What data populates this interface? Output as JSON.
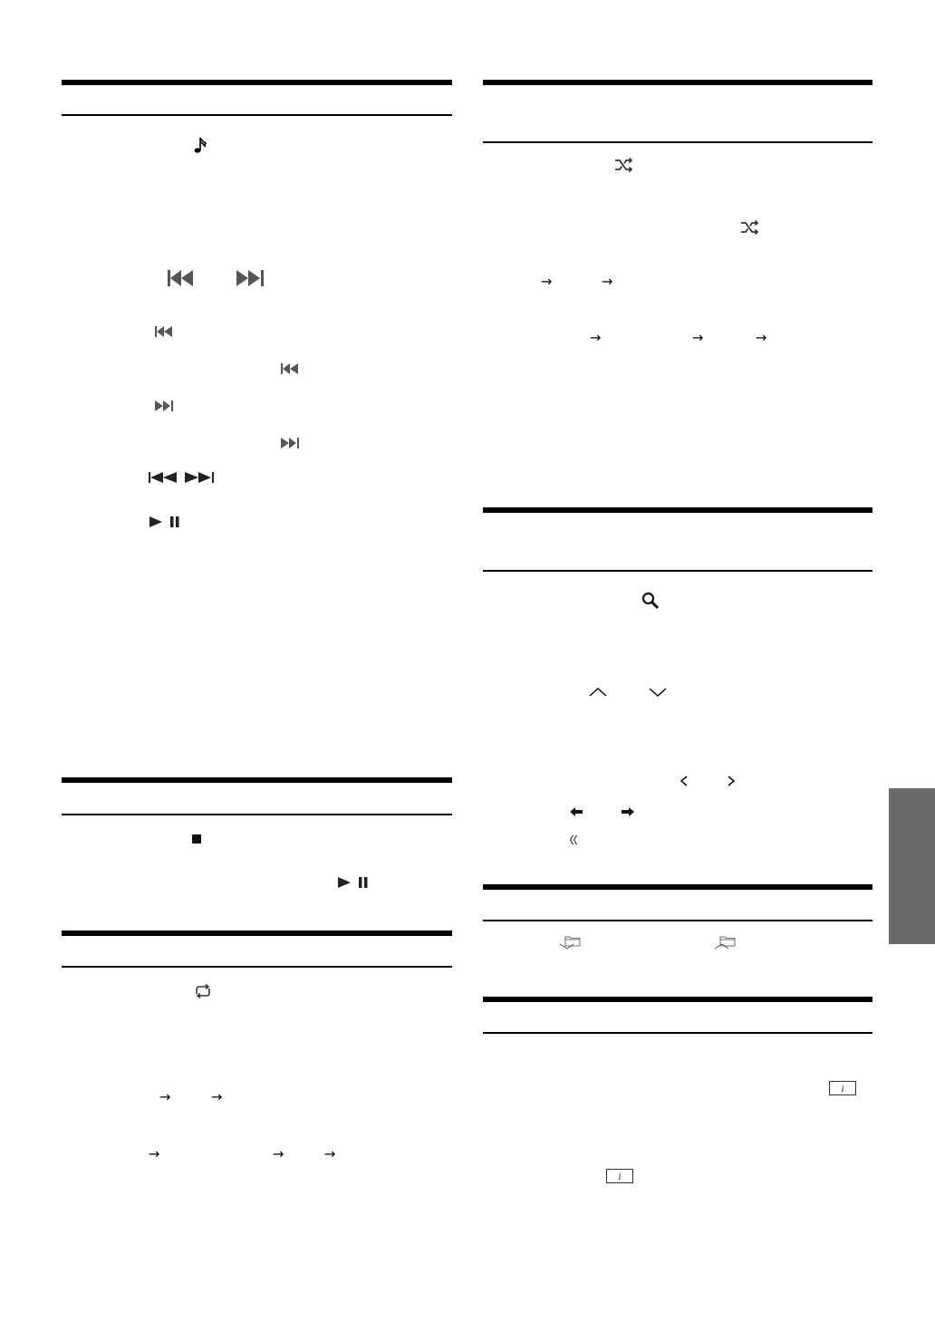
{
  "colors": {
    "text": "#000000",
    "icon_gray": "#555555",
    "side_tab": "#6b6b6b"
  },
  "arrow_glyph": "→",
  "left_column": {
    "section_1": {
      "icons": [
        "music-note-icon",
        "previous-track-icon",
        "next-track-icon",
        "previous-track-icon",
        "previous-track-icon",
        "next-track-icon",
        "next-track-icon",
        "fast-rewind-icon",
        "fast-forward-icon",
        "play-pause-icon"
      ]
    },
    "section_2": {
      "icons": [
        "stop-icon",
        "play-pause-icon"
      ]
    },
    "section_3": {
      "icons": [
        "repeat-icon"
      ],
      "arrows": 5
    }
  },
  "right_column": {
    "section_1": {
      "icons": [
        "shuffle-icon",
        "shuffle-icon"
      ],
      "arrows": 5
    },
    "section_2": {
      "icons": [
        "search-icon",
        "chevron-up-icon",
        "chevron-down-icon",
        "chevron-left-icon",
        "chevron-right-icon",
        "arrow-left-icon",
        "arrow-right-icon",
        "double-chevron-left-icon"
      ]
    },
    "section_3": {
      "icons": [
        "folder-down-icon",
        "folder-up-icon"
      ]
    },
    "section_4": {
      "icons": [
        "info-button-icon",
        "info-button-icon"
      ],
      "info_label": "i"
    }
  }
}
